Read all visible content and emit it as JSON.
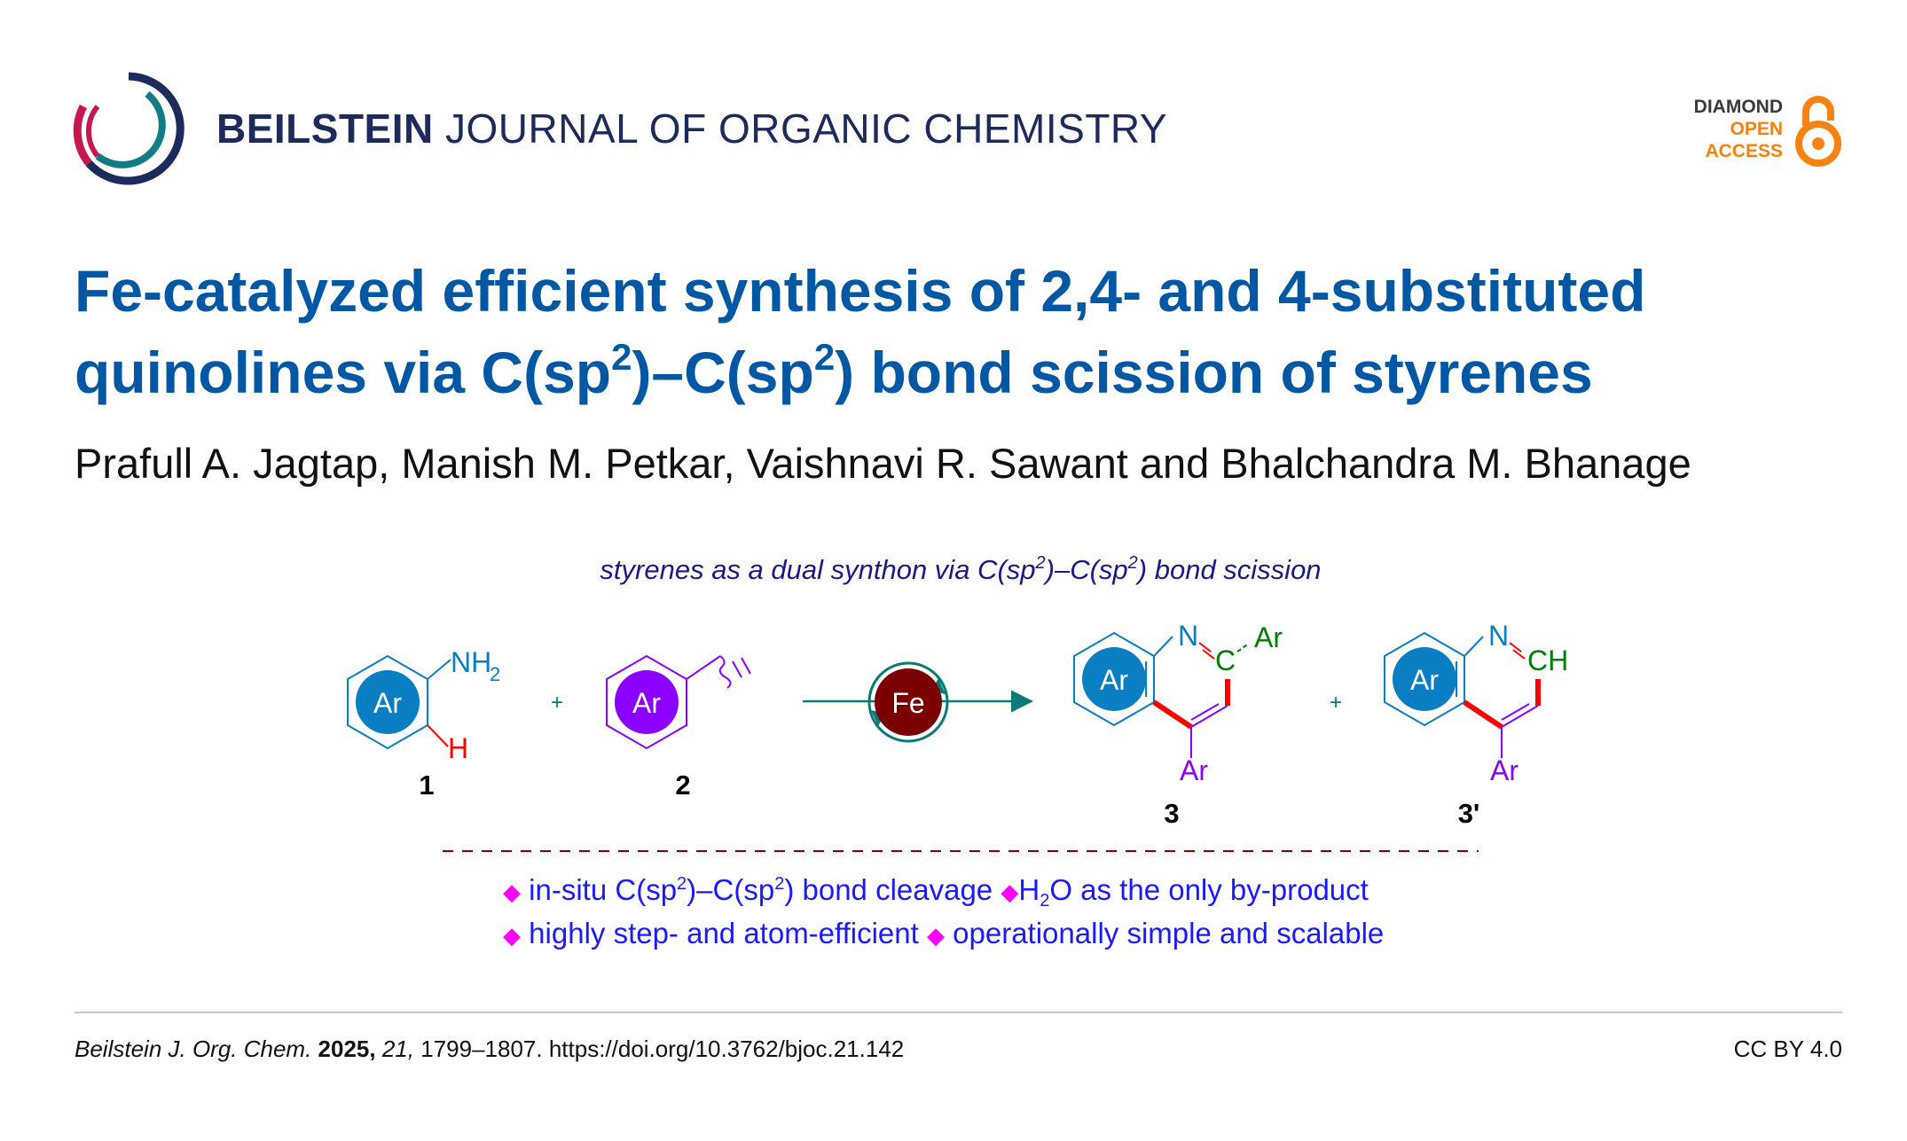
{
  "header": {
    "journal_bold": "BEILSTEIN",
    "journal_rest": " JOURNAL OF ORGANIC CHEMISTRY",
    "oa_line1": "DIAMOND",
    "oa_line2": "OPEN",
    "oa_line3": "ACCESS",
    "icons": [
      "beilstein-logo",
      "open-access-lock-icon"
    ]
  },
  "article": {
    "title_line1": "Fe-catalyzed efficient synthesis of 2,4- and 4-substituted",
    "title_line2_a": "quinolines via C(sp",
    "title_sup": "2",
    "title_line2_b": ")–C(sp",
    "title_line2_c": ") bond scission of styrenes",
    "authors": "Prafull A. Jagtap, Manish M. Petkar, Vaishnavi R. Sawant and Bhalchandra M. Bhanage"
  },
  "scheme": {
    "subtitle_a": "styrenes as a dual synthon via C(sp",
    "sup": "2",
    "subtitle_b": ")–C(sp",
    "subtitle_c": ") bond scission",
    "ar": "Ar",
    "nh": "NH",
    "sub2": "2",
    "h": "H",
    "n": "N",
    "c": "C",
    "ch": "CH",
    "fe": "Fe",
    "plus": "+",
    "labels": [
      "1",
      "2",
      "3",
      "3'"
    ],
    "bullets": {
      "diamond": "◆",
      "b1_a": "in-situ C(sp",
      "b1_b": ")–C(sp",
      "b1_c": ") bond cleavage",
      "b2_a": "H",
      "b2_b": "O as the only by-product",
      "b3": "highly step- and atom-efficient",
      "b4": "operationally simple and scalable"
    },
    "colors": {
      "ar_blue": "#0a7ec2",
      "ar_purple": "#8b00ff",
      "fe": "#7a0000",
      "arrow": "#0a7a78",
      "red_bond": "#ff0000",
      "green": "#008000"
    }
  },
  "footer": {
    "journal": "Beilstein J. Org. Chem.",
    "year": "2025,",
    "volume": "21,",
    "pages": " 1799–1807. ",
    "doi": "https://doi.org/10.3762/bjoc.21.142",
    "license": "CC BY 4.0"
  }
}
